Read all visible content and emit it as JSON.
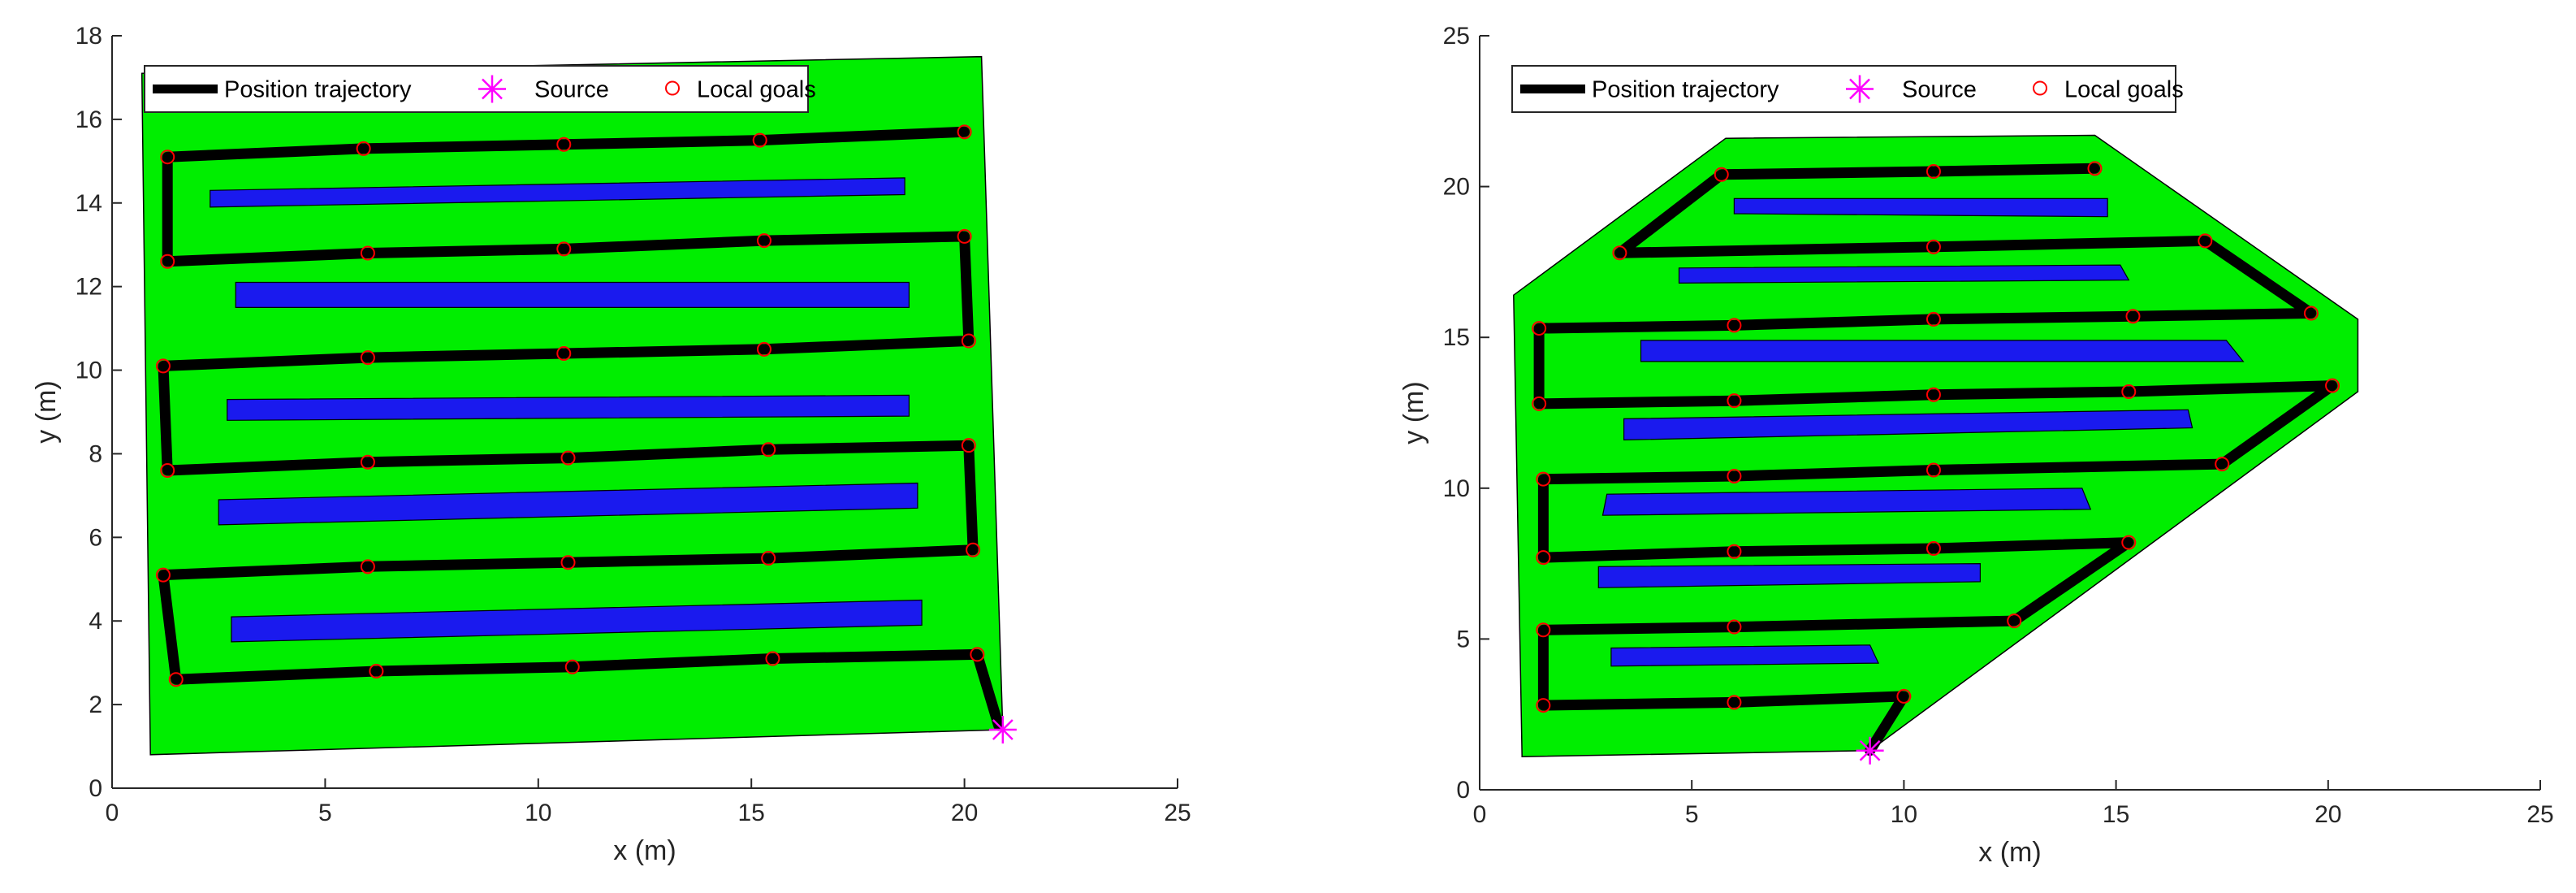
{
  "chart_data": [
    {
      "type": "scatter",
      "xlabel": "x (m)",
      "ylabel": "y (m)",
      "xlim": [
        0,
        25
      ],
      "ylim": [
        0,
        18
      ],
      "xticks": [
        "0",
        "5",
        "10",
        "15",
        "20",
        "25"
      ],
      "yticks": [
        "0",
        "2",
        "4",
        "6",
        "8",
        "10",
        "12",
        "14",
        "16",
        "18"
      ],
      "legend": {
        "placement": "top-left",
        "entries": [
          "Position trajectory",
          "Source",
          "Local goals"
        ]
      },
      "colors": {
        "field": "#00ee00",
        "rows": "#1a1aee",
        "trajectory": "#000000",
        "source": "#ff00ff",
        "goals": "#ff0000"
      },
      "boundary": [
        [
          0.7,
          17.1
        ],
        [
          20.4,
          17.5
        ],
        [
          20.9,
          1.4
        ],
        [
          0.9,
          0.8
        ]
      ],
      "obstacles": [
        [
          [
            2.3,
            13.9
          ],
          [
            18.6,
            14.2
          ],
          [
            18.6,
            14.6
          ],
          [
            2.3,
            14.3
          ]
        ],
        [
          [
            2.9,
            11.5
          ],
          [
            18.7,
            11.5
          ],
          [
            18.7,
            12.1
          ],
          [
            2.9,
            12.1
          ]
        ],
        [
          [
            2.7,
            8.8
          ],
          [
            18.7,
            8.9
          ],
          [
            18.7,
            9.4
          ],
          [
            2.7,
            9.3
          ]
        ],
        [
          [
            2.5,
            6.3
          ],
          [
            18.9,
            6.7
          ],
          [
            18.9,
            7.3
          ],
          [
            2.5,
            6.9
          ]
        ],
        [
          [
            2.8,
            3.5
          ],
          [
            19.0,
            3.9
          ],
          [
            19.0,
            4.5
          ],
          [
            2.8,
            4.1
          ]
        ]
      ],
      "trajectory": [
        [
          20.8,
          1.5
        ],
        [
          20.3,
          3.2
        ],
        [
          15.5,
          3.1
        ],
        [
          10.8,
          2.9
        ],
        [
          6.2,
          2.8
        ],
        [
          1.5,
          2.6
        ],
        [
          1.2,
          5.1
        ],
        [
          6.0,
          5.3
        ],
        [
          10.7,
          5.4
        ],
        [
          15.4,
          5.5
        ],
        [
          20.2,
          5.7
        ],
        [
          20.1,
          8.2
        ],
        [
          15.4,
          8.1
        ],
        [
          10.7,
          7.9
        ],
        [
          6.0,
          7.8
        ],
        [
          1.3,
          7.6
        ],
        [
          1.2,
          10.1
        ],
        [
          6.0,
          10.3
        ],
        [
          10.6,
          10.4
        ],
        [
          15.3,
          10.5
        ],
        [
          20.1,
          10.7
        ],
        [
          20.0,
          13.2
        ],
        [
          15.3,
          13.1
        ],
        [
          10.6,
          12.9
        ],
        [
          6.0,
          12.8
        ],
        [
          1.3,
          12.6
        ],
        [
          1.3,
          15.1
        ],
        [
          5.9,
          15.3
        ],
        [
          10.6,
          15.4
        ],
        [
          15.2,
          15.5
        ],
        [
          20.0,
          15.7
        ]
      ],
      "local_goals": [
        [
          20.3,
          3.2
        ],
        [
          15.5,
          3.1
        ],
        [
          10.8,
          2.9
        ],
        [
          6.2,
          2.8
        ],
        [
          1.5,
          2.6
        ],
        [
          1.2,
          5.1
        ],
        [
          6.0,
          5.3
        ],
        [
          10.7,
          5.4
        ],
        [
          15.4,
          5.5
        ],
        [
          20.2,
          5.7
        ],
        [
          20.1,
          8.2
        ],
        [
          15.4,
          8.1
        ],
        [
          10.7,
          7.9
        ],
        [
          6.0,
          7.8
        ],
        [
          1.3,
          7.6
        ],
        [
          1.2,
          10.1
        ],
        [
          6.0,
          10.3
        ],
        [
          10.6,
          10.4
        ],
        [
          15.3,
          10.5
        ],
        [
          20.1,
          10.7
        ],
        [
          20.0,
          13.2
        ],
        [
          15.3,
          13.1
        ],
        [
          10.6,
          12.9
        ],
        [
          6.0,
          12.8
        ],
        [
          1.3,
          12.6
        ],
        [
          1.3,
          15.1
        ],
        [
          5.9,
          15.3
        ],
        [
          10.6,
          15.4
        ],
        [
          15.2,
          15.5
        ],
        [
          20.0,
          15.7
        ]
      ],
      "source": [
        20.9,
        1.4
      ]
    },
    {
      "type": "scatter",
      "xlabel": "x (m)",
      "ylabel": "y (m)",
      "xlim": [
        0,
        25
      ],
      "ylim": [
        0,
        25
      ],
      "xticks": [
        "0",
        "5",
        "10",
        "15",
        "20",
        "25"
      ],
      "yticks": [
        "0",
        "5",
        "10",
        "15",
        "20",
        "25"
      ],
      "legend": {
        "placement": "top-left",
        "entries": [
          "Position trajectory",
          "Source",
          "Local goals"
        ]
      },
      "colors": {
        "field": "#00ee00",
        "rows": "#1a1aee",
        "trajectory": "#000000",
        "source": "#ff00ff",
        "goals": "#ff0000"
      },
      "boundary": [
        [
          1.0,
          1.1
        ],
        [
          9.2,
          1.3
        ],
        [
          20.7,
          13.2
        ],
        [
          20.7,
          15.6
        ],
        [
          14.5,
          21.7
        ],
        [
          5.8,
          21.6
        ],
        [
          0.8,
          16.4
        ]
      ],
      "obstacles": [
        [
          [
            6.0,
            19.1
          ],
          [
            14.8,
            19.0
          ],
          [
            14.8,
            19.6
          ],
          [
            6.0,
            19.6
          ]
        ],
        [
          [
            4.7,
            16.8
          ],
          [
            15.3,
            16.9
          ],
          [
            15.1,
            17.4
          ],
          [
            4.7,
            17.3
          ]
        ],
        [
          [
            3.8,
            14.2
          ],
          [
            18.0,
            14.2
          ],
          [
            17.6,
            14.9
          ],
          [
            3.8,
            14.9
          ]
        ],
        [
          [
            3.4,
            11.6
          ],
          [
            16.8,
            12.0
          ],
          [
            16.7,
            12.6
          ],
          [
            3.4,
            12.3
          ]
        ],
        [
          [
            2.9,
            9.1
          ],
          [
            14.4,
            9.3
          ],
          [
            14.2,
            10.0
          ],
          [
            3.0,
            9.8
          ]
        ],
        [
          [
            2.8,
            6.7
          ],
          [
            11.8,
            6.9
          ],
          [
            11.8,
            7.5
          ],
          [
            2.8,
            7.4
          ]
        ],
        [
          [
            3.1,
            4.1
          ],
          [
            9.4,
            4.2
          ],
          [
            9.2,
            4.8
          ],
          [
            3.1,
            4.7
          ]
        ]
      ],
      "trajectory": [
        [
          9.2,
          1.3
        ],
        [
          10.0,
          3.1
        ],
        [
          6.0,
          2.9
        ],
        [
          1.5,
          2.8
        ],
        [
          1.5,
          5.3
        ],
        [
          6.0,
          5.4
        ],
        [
          12.6,
          5.6
        ],
        [
          15.3,
          8.2
        ],
        [
          10.7,
          8.0
        ],
        [
          6.0,
          7.9
        ],
        [
          1.5,
          7.7
        ],
        [
          1.5,
          10.3
        ],
        [
          6.0,
          10.4
        ],
        [
          10.7,
          10.6
        ],
        [
          17.5,
          10.8
        ],
        [
          20.1,
          13.4
        ],
        [
          15.3,
          13.2
        ],
        [
          10.7,
          13.1
        ],
        [
          6.0,
          12.9
        ],
        [
          1.4,
          12.8
        ],
        [
          1.4,
          15.3
        ],
        [
          6.0,
          15.4
        ],
        [
          10.7,
          15.6
        ],
        [
          15.4,
          15.7
        ],
        [
          19.6,
          15.8
        ],
        [
          17.1,
          18.2
        ],
        [
          10.7,
          18.0
        ],
        [
          3.3,
          17.8
        ],
        [
          5.7,
          20.4
        ],
        [
          10.7,
          20.5
        ],
        [
          14.5,
          20.6
        ]
      ],
      "local_goals": [
        [
          10.0,
          3.1
        ],
        [
          6.0,
          2.9
        ],
        [
          1.5,
          2.8
        ],
        [
          1.5,
          5.3
        ],
        [
          6.0,
          5.4
        ],
        [
          12.6,
          5.6
        ],
        [
          15.3,
          8.2
        ],
        [
          10.7,
          8.0
        ],
        [
          6.0,
          7.9
        ],
        [
          1.5,
          7.7
        ],
        [
          1.5,
          10.3
        ],
        [
          6.0,
          10.4
        ],
        [
          10.7,
          10.6
        ],
        [
          17.5,
          10.8
        ],
        [
          20.1,
          13.4
        ],
        [
          15.3,
          13.2
        ],
        [
          10.7,
          13.1
        ],
        [
          6.0,
          12.9
        ],
        [
          1.4,
          12.8
        ],
        [
          1.4,
          15.3
        ],
        [
          6.0,
          15.4
        ],
        [
          10.7,
          15.6
        ],
        [
          15.4,
          15.7
        ],
        [
          19.6,
          15.8
        ],
        [
          17.1,
          18.2
        ],
        [
          10.7,
          18.0
        ],
        [
          3.3,
          17.8
        ],
        [
          5.7,
          20.4
        ],
        [
          10.7,
          20.5
        ],
        [
          14.5,
          20.6
        ]
      ],
      "source": [
        9.2,
        1.3
      ]
    }
  ]
}
